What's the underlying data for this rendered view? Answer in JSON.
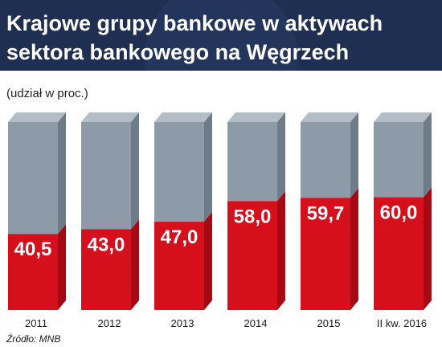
{
  "chart_data": {
    "type": "bar",
    "title_lines": [
      "Krajowe grupy bankowe w aktywach",
      "sektora bankowego na Węgrzech"
    ],
    "unit_note": "(udział w proc.)",
    "categories": [
      "2011",
      "2012",
      "2013",
      "2014",
      "2015",
      "II kw. 2016"
    ],
    "values": [
      40.5,
      43.0,
      47.0,
      58.0,
      59.7,
      60.0
    ],
    "value_labels": [
      "40,5",
      "43,0",
      "47,0",
      "58,0",
      "59,7",
      "60,0"
    ],
    "ylim": [
      0,
      100
    ],
    "stacked_remainder_to": 100,
    "source": "Źródło: MNB"
  },
  "colors": {
    "header_bg": "#1f2f52",
    "bar_value": "#d50f1c",
    "bar_value_dark": "#a50a14",
    "bar_rest": "#8d9aa7",
    "bar_rest_top": "#b3bdc6",
    "bar_rest_side": "#6e7b88",
    "page_bg": "#ffffff"
  }
}
